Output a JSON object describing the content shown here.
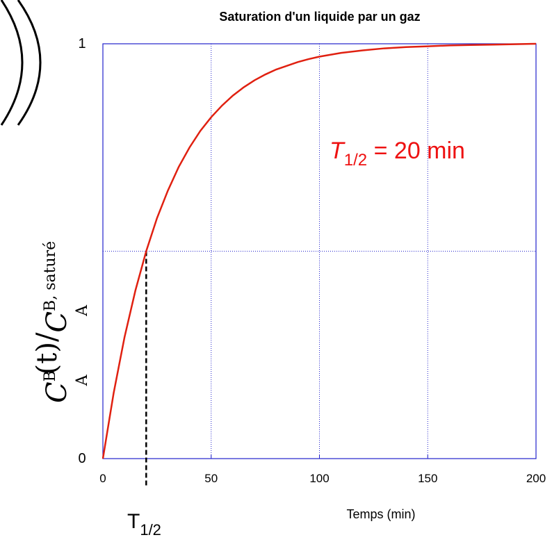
{
  "chart_data": {
    "type": "line",
    "title": "Saturation d'un liquide par un gaz",
    "x_label": "Temps (min)",
    "y_label": [
      "C",
      "B",
      "A",
      "(t)/",
      "C",
      "B, saturé",
      "A"
    ],
    "annotation": [
      "T",
      "1/2",
      " = 20 min"
    ],
    "marker": {
      "x": 20,
      "y": 0.5,
      "label": [
        "T",
        "1/2"
      ]
    },
    "x": [
      0,
      5,
      10,
      15,
      20,
      25,
      30,
      35,
      40,
      45,
      50,
      55,
      60,
      65,
      70,
      75,
      80,
      85,
      90,
      95,
      100,
      110,
      120,
      130,
      140,
      150,
      160,
      170,
      180,
      190,
      200
    ],
    "series": [
      {
        "name": "saturation",
        "color": "#e02010",
        "values": [
          0,
          0.159,
          0.293,
          0.405,
          0.5,
          0.58,
          0.646,
          0.703,
          0.75,
          0.79,
          0.823,
          0.851,
          0.875,
          0.895,
          0.912,
          0.926,
          0.938,
          0.947,
          0.956,
          0.963,
          0.969,
          0.978,
          0.984,
          0.989,
          0.992,
          0.994,
          0.996,
          0.997,
          0.998,
          0.999,
          1.0
        ]
      }
    ],
    "xlim": [
      0,
      200
    ],
    "xticks": [
      0,
      50,
      100,
      150,
      200
    ],
    "ylim": [
      0,
      1
    ],
    "yticks": [
      0,
      1
    ],
    "ygrid": [
      0.5
    ],
    "grid": true,
    "annotation_color": "#ee1111",
    "axis_color": "#2222cc"
  }
}
